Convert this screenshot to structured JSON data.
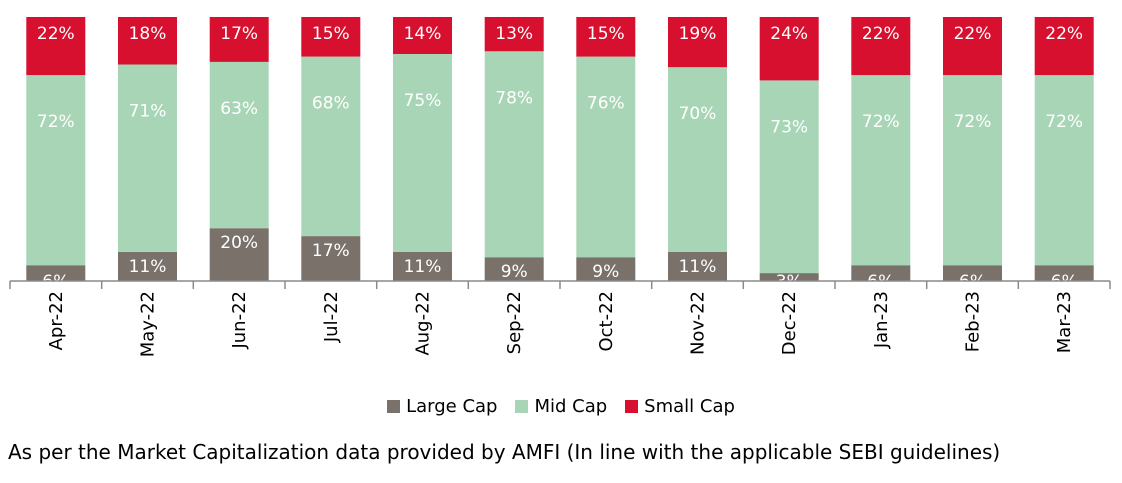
{
  "chart_data": {
    "type": "bar",
    "stacked": true,
    "percent_stacked": true,
    "categories": [
      "Apr-22",
      "May-22",
      "Jun-22",
      "Jul-22",
      "Aug-22",
      "Sep-22",
      "Oct-22",
      "Nov-22",
      "Dec-22",
      "Jan-23",
      "Feb-23",
      "Mar-23"
    ],
    "series": [
      {
        "name": "Large Cap",
        "color": "#7a716b",
        "label_color": "#ffffff",
        "values": [
          6,
          11,
          20,
          17,
          11,
          9,
          9,
          11,
          3,
          6,
          6,
          6
        ]
      },
      {
        "name": "Mid Cap",
        "color": "#a9d5b7",
        "label_color": "#ffffff",
        "values": [
          72,
          71,
          63,
          68,
          75,
          78,
          76,
          70,
          73,
          72,
          72,
          72
        ]
      },
      {
        "name": "Small Cap",
        "color": "#d7102f",
        "label_color": "#ffffff",
        "values": [
          22,
          18,
          17,
          15,
          14,
          13,
          15,
          19,
          24,
          22,
          22,
          22
        ]
      }
    ],
    "ylim": [
      0,
      100
    ],
    "grid": false,
    "legend_position": "bottom",
    "xlabel": "",
    "ylabel": "",
    "title": ""
  },
  "footnote": "As per the Market Capitalization data provided by AMFI (In line with the applicable SEBI guidelines)"
}
